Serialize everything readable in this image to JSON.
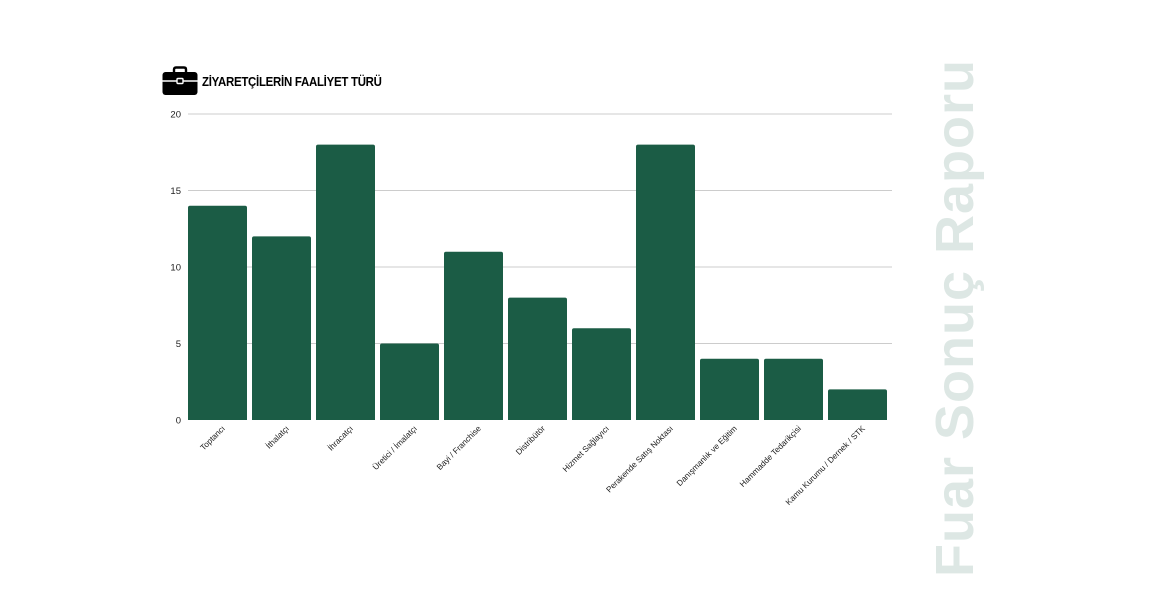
{
  "header": {
    "title": "ZİYARETÇİLERİN FAALİYET TÜRÜ",
    "icon": "briefcase-icon"
  },
  "watermark": {
    "text": "Fuar Sonuç Raporu"
  },
  "chart_data": {
    "type": "bar",
    "categories": [
      "Toptancı",
      "İthalatçı",
      "İhracatçı",
      "Üretici / İmalatçı",
      "Bayi / Franchise",
      "Distribütör",
      "Hizmet Sağlayıcı",
      "Perakende Satış Noktası",
      "Danışmanlık ve Eğitim",
      "Hammadde Tedarikçisi",
      "Kamu Kurumu / Dernek / STK"
    ],
    "values": [
      14,
      12,
      18,
      5,
      11,
      8,
      6,
      18,
      4,
      4,
      2
    ],
    "ylim": [
      0,
      20
    ],
    "yticks": [
      0,
      5,
      10,
      15,
      20
    ],
    "grid": true,
    "bar_color": "#1b5c45",
    "grid_color": "#cccccc",
    "watermark_color": "#dde7e4"
  }
}
